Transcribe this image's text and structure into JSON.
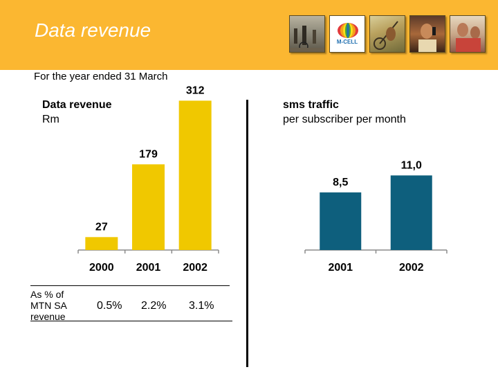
{
  "header": {
    "title": "Data revenue",
    "logo_text": "M-CELL",
    "colors": {
      "band": "#fbb731",
      "title": "#ffffff"
    },
    "photos": [
      "market-street-photo",
      "m-cell-logo",
      "cyclist-photo",
      "woman-phone-photo",
      "people-photo"
    ]
  },
  "subtitle": "For the year ended 31 March",
  "left_chart": {
    "title": "Data revenue",
    "unit": "Rm",
    "percent_label": "As % of MTN SA revenue",
    "percent_values": [
      "0.5%",
      "2.2%",
      "3.1%"
    ]
  },
  "right_chart": {
    "title": "sms traffic",
    "unit": "per subscriber per month"
  },
  "chart_data": [
    {
      "type": "bar",
      "title": "Data revenue",
      "ylabel": "Rm",
      "categories": [
        "2000",
        "2001",
        "2002"
      ],
      "values": [
        27,
        179,
        312
      ],
      "value_labels": [
        "27",
        "179",
        "312"
      ],
      "color": "#f0c800",
      "ylim": [
        0,
        340
      ]
    },
    {
      "type": "bar",
      "title": "sms traffic",
      "ylabel": "per subscriber per month",
      "categories": [
        "2001",
        "2002"
      ],
      "values": [
        8.5,
        11.0
      ],
      "value_labels": [
        "8,5",
        "11,0"
      ],
      "color": "#0e5f7d",
      "ylim": [
        0,
        24
      ]
    }
  ]
}
